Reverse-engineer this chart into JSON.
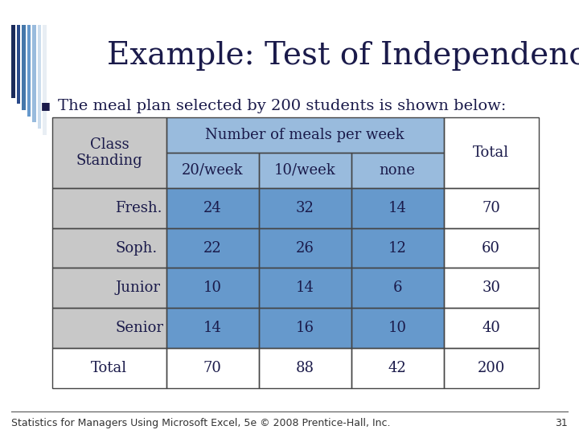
{
  "title": "Example: Test of Independence",
  "bullet": "The meal plan selected by 200 students is shown below:",
  "rows": [
    [
      "Fresh.",
      "24",
      "32",
      "14",
      "70"
    ],
    [
      "Soph.",
      "22",
      "26",
      "12",
      "60"
    ],
    [
      "Junior",
      "10",
      "14",
      "6",
      "30"
    ],
    [
      "Senior",
      "14",
      "16",
      "10",
      "40"
    ],
    [
      "Total",
      "70",
      "88",
      "42",
      "200"
    ]
  ],
  "bg_white": "#FFFFFF",
  "bg_light_gray": "#C8C8C8",
  "bg_light_blue_header": "#99BBDD",
  "bg_medium_blue": "#6699CC",
  "text_dark": "#1A1A4A",
  "top_bar_color": "#1A2A5A",
  "footer_text": "Statistics for Managers Using Microsoft Excel, 5e © 2008 Prentice-Hall, Inc.",
  "page_number": "31",
  "title_font_size": 28,
  "bullet_font_size": 14,
  "table_font_size": 13,
  "footer_font_size": 9,
  "stripe_colors": [
    "#1A2A5A",
    "#2A4A8A",
    "#4477AA",
    "#6699CC",
    "#99BBDD",
    "#CCDDEE",
    "#E8EEF4"
  ]
}
